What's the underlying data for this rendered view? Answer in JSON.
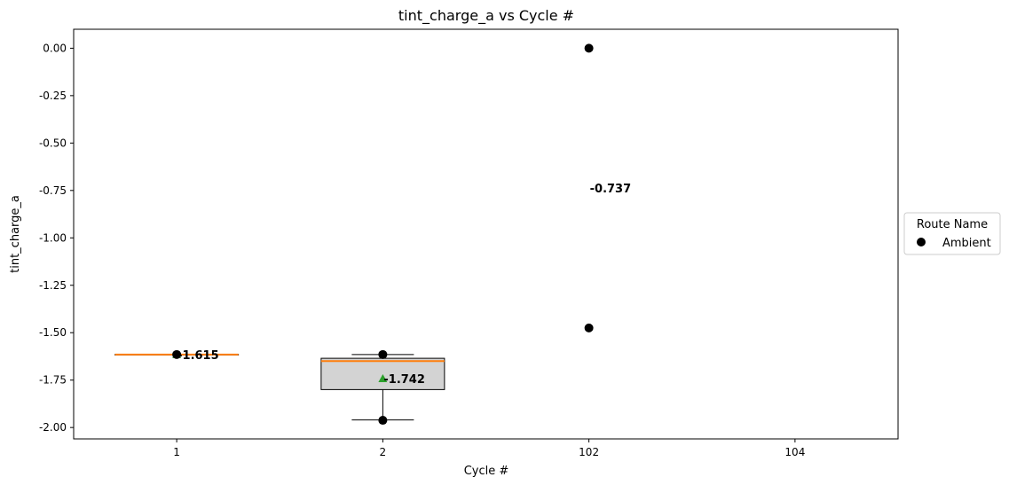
{
  "chart_data": {
    "type": "box",
    "title": "tint_charge_a vs Cycle #",
    "xlabel": "Cycle #",
    "ylabel": "tint_charge_a",
    "categories": [
      "1",
      "2",
      "102",
      "104"
    ],
    "ylim": [
      -2.06,
      0.1
    ],
    "yticks": [
      "0.00",
      "-0.25",
      "-0.50",
      "-0.75",
      "-1.00",
      "-1.25",
      "-1.50",
      "-1.75",
      "-2.00"
    ],
    "boxes": [
      {
        "category": "1",
        "q1": -1.615,
        "median": -1.615,
        "q3": -1.615,
        "whisker_low": -1.615,
        "whisker_high": -1.615,
        "mean": -1.615
      },
      {
        "category": "2",
        "q1": -1.8,
        "median": -1.65,
        "q3": -1.635,
        "whisker_low": -1.96,
        "whisker_high": -1.615,
        "mean": -1.742
      }
    ],
    "points": [
      {
        "category": "1",
        "y": -1.615
      },
      {
        "category": "2",
        "y": -1.615
      },
      {
        "category": "2",
        "y": -1.962
      },
      {
        "category": "102",
        "y": 0.0
      },
      {
        "category": "102",
        "y": -1.475
      }
    ],
    "mean_labels": [
      {
        "category": "1",
        "y": -1.615,
        "text": "-1.615"
      },
      {
        "category": "2",
        "y": -1.742,
        "text": "-1.742"
      },
      {
        "category": "102",
        "y": -0.737,
        "text": "-0.737"
      }
    ],
    "legend": {
      "title": "Route Name",
      "entries": [
        "Ambient"
      ],
      "placement": "outside-right"
    },
    "colors": {
      "box_fill": "#d3d3d3",
      "median": "#ff7f0e",
      "mean_marker": "#2ca02c",
      "points": "#000000"
    },
    "grid": false
  }
}
